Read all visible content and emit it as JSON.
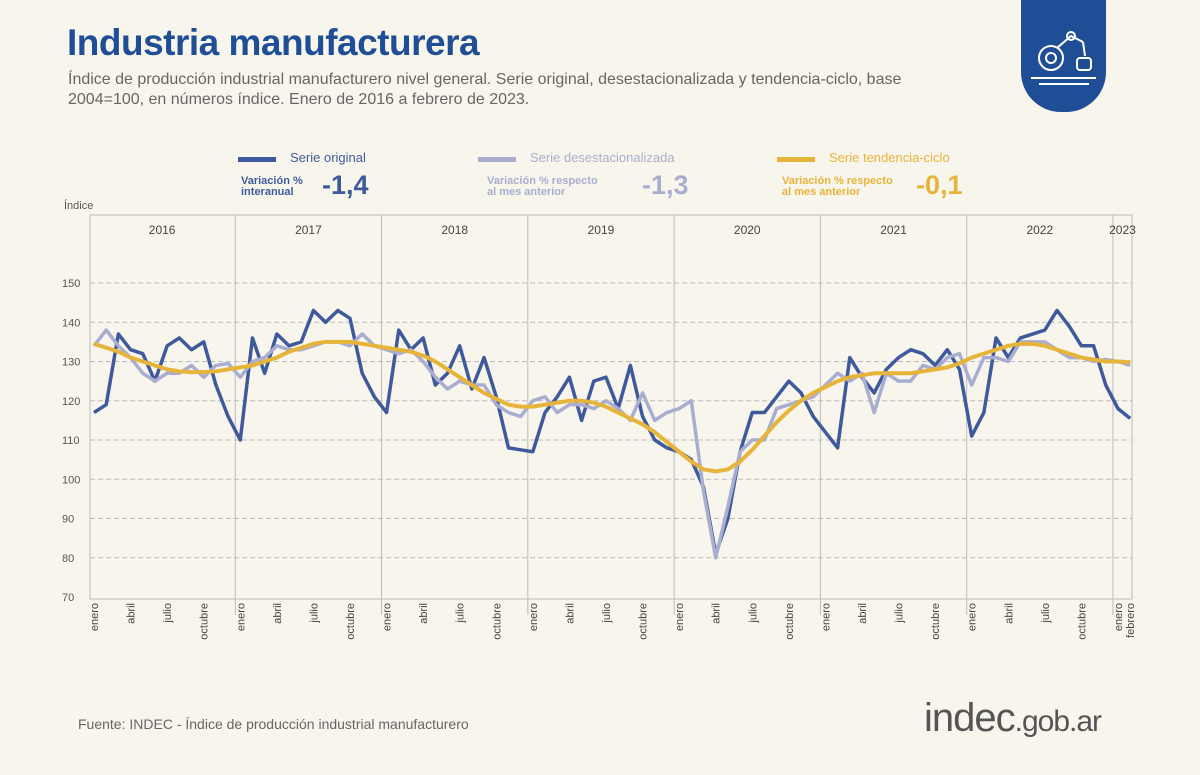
{
  "header": {
    "title": "Industria manufacturera",
    "subtitle": "Índice de producción industrial manufacturero nivel general. Serie original, desestacionalizada y tendencia-ciclo, base 2004=100, en números índice. Enero de 2016 a febrero de 2023.",
    "badge_icon": "industrial-robot-arm-icon"
  },
  "legend": [
    {
      "name": "Serie original",
      "color": "#3f5a9c",
      "var_label_1": "Variación %",
      "var_label_2": "interanual",
      "value": "-1,4"
    },
    {
      "name": "Serie desestacionalizada",
      "color": "#a9aed0",
      "var_label_1": "Variación % respecto",
      "var_label_2": "al mes anterior",
      "value": "-1,3"
    },
    {
      "name": "Serie tendencia-ciclo",
      "color": "#e7b43a",
      "var_label_1": "Variación % respecto",
      "var_label_2": "al mes anterior",
      "value": "-0,1"
    }
  ],
  "footer": {
    "source": "Fuente: INDEC - Índice de producción industrial manufacturero",
    "logo_main": "indec",
    "logo_suffix": ".gob.ar"
  },
  "chart_data": {
    "type": "line",
    "ylabel": "Índice",
    "ylim": [
      70,
      150
    ],
    "yticks": [
      70,
      80,
      90,
      100,
      110,
      120,
      130,
      140,
      150
    ],
    "grid": true,
    "years": [
      "2016",
      "2017",
      "2018",
      "2019",
      "2020",
      "2021",
      "2022",
      "2023"
    ],
    "month_tick_labels": [
      "enero",
      "abril",
      "julio",
      "octubre"
    ],
    "last_month_labels": [
      "enero",
      "febrero"
    ],
    "x_start": "2016-01",
    "x_end": "2023-02",
    "series": [
      {
        "name": "Serie original",
        "color": "#3f5a9c",
        "values": [
          117,
          119,
          137,
          133,
          132,
          125,
          134,
          136,
          133,
          135,
          124,
          116,
          110,
          136,
          127,
          137,
          134,
          135,
          143,
          140,
          143,
          141,
          127,
          121,
          117,
          138,
          133,
          136,
          124,
          127,
          134,
          123,
          131,
          121,
          108,
          107.5,
          107,
          117,
          121,
          126,
          115,
          125,
          126,
          118,
          129,
          116,
          110,
          108,
          107,
          105,
          98,
          81,
          90,
          107,
          117,
          117,
          121,
          125,
          122,
          116,
          112,
          108,
          131,
          126,
          122,
          128,
          131,
          133,
          132,
          129,
          133,
          128,
          111,
          117,
          136,
          131,
          136,
          137,
          138,
          143,
          139,
          134,
          134,
          124,
          118,
          115.5
        ]
      },
      {
        "name": "Serie desestacionalizada",
        "color": "#a9aed0",
        "values": [
          134,
          138,
          134,
          131,
          127,
          125,
          127,
          127,
          129,
          126,
          129,
          129.5,
          126,
          130,
          131,
          134,
          133,
          133,
          134,
          135,
          135,
          134,
          137,
          134,
          133,
          132,
          133,
          130,
          126,
          123,
          125,
          124,
          124,
          119,
          117,
          116,
          120,
          121,
          117,
          119,
          119,
          118,
          120,
          118,
          115,
          122,
          115,
          117,
          118,
          120,
          97,
          80,
          93,
          107,
          110,
          110,
          118,
          119,
          120,
          121,
          124,
          127,
          125,
          127,
          117,
          127,
          125,
          125,
          129,
          128,
          131,
          132,
          124,
          131,
          131,
          130,
          135,
          135,
          135,
          133,
          131,
          131,
          130,
          130.5,
          130,
          129
        ]
      },
      {
        "name": "Serie tendencia-ciclo",
        "color": "#e7b43a",
        "values": [
          134.5,
          133.5,
          132.5,
          131,
          130,
          129,
          128,
          127.5,
          127.3,
          127.3,
          127.5,
          128,
          128.5,
          129,
          130,
          131,
          132.5,
          133.5,
          134.5,
          135,
          135,
          135,
          134.5,
          134,
          133.5,
          133,
          132.5,
          131.5,
          130,
          128,
          126,
          124,
          122,
          120.5,
          119,
          118.5,
          118.5,
          119,
          119.5,
          120,
          120,
          119.5,
          118.5,
          117,
          115.5,
          114,
          112,
          109.5,
          107,
          104.5,
          102.5,
          102,
          102.5,
          104.5,
          107.5,
          111,
          114.5,
          117.5,
          120,
          122,
          123.5,
          125,
          126,
          126.5,
          127,
          127,
          127,
          127,
          127.5,
          128,
          128.5,
          129.5,
          131,
          132,
          133,
          134,
          134.5,
          134.5,
          134,
          133,
          132,
          131,
          130.5,
          130,
          130,
          129.8
        ]
      }
    ]
  }
}
